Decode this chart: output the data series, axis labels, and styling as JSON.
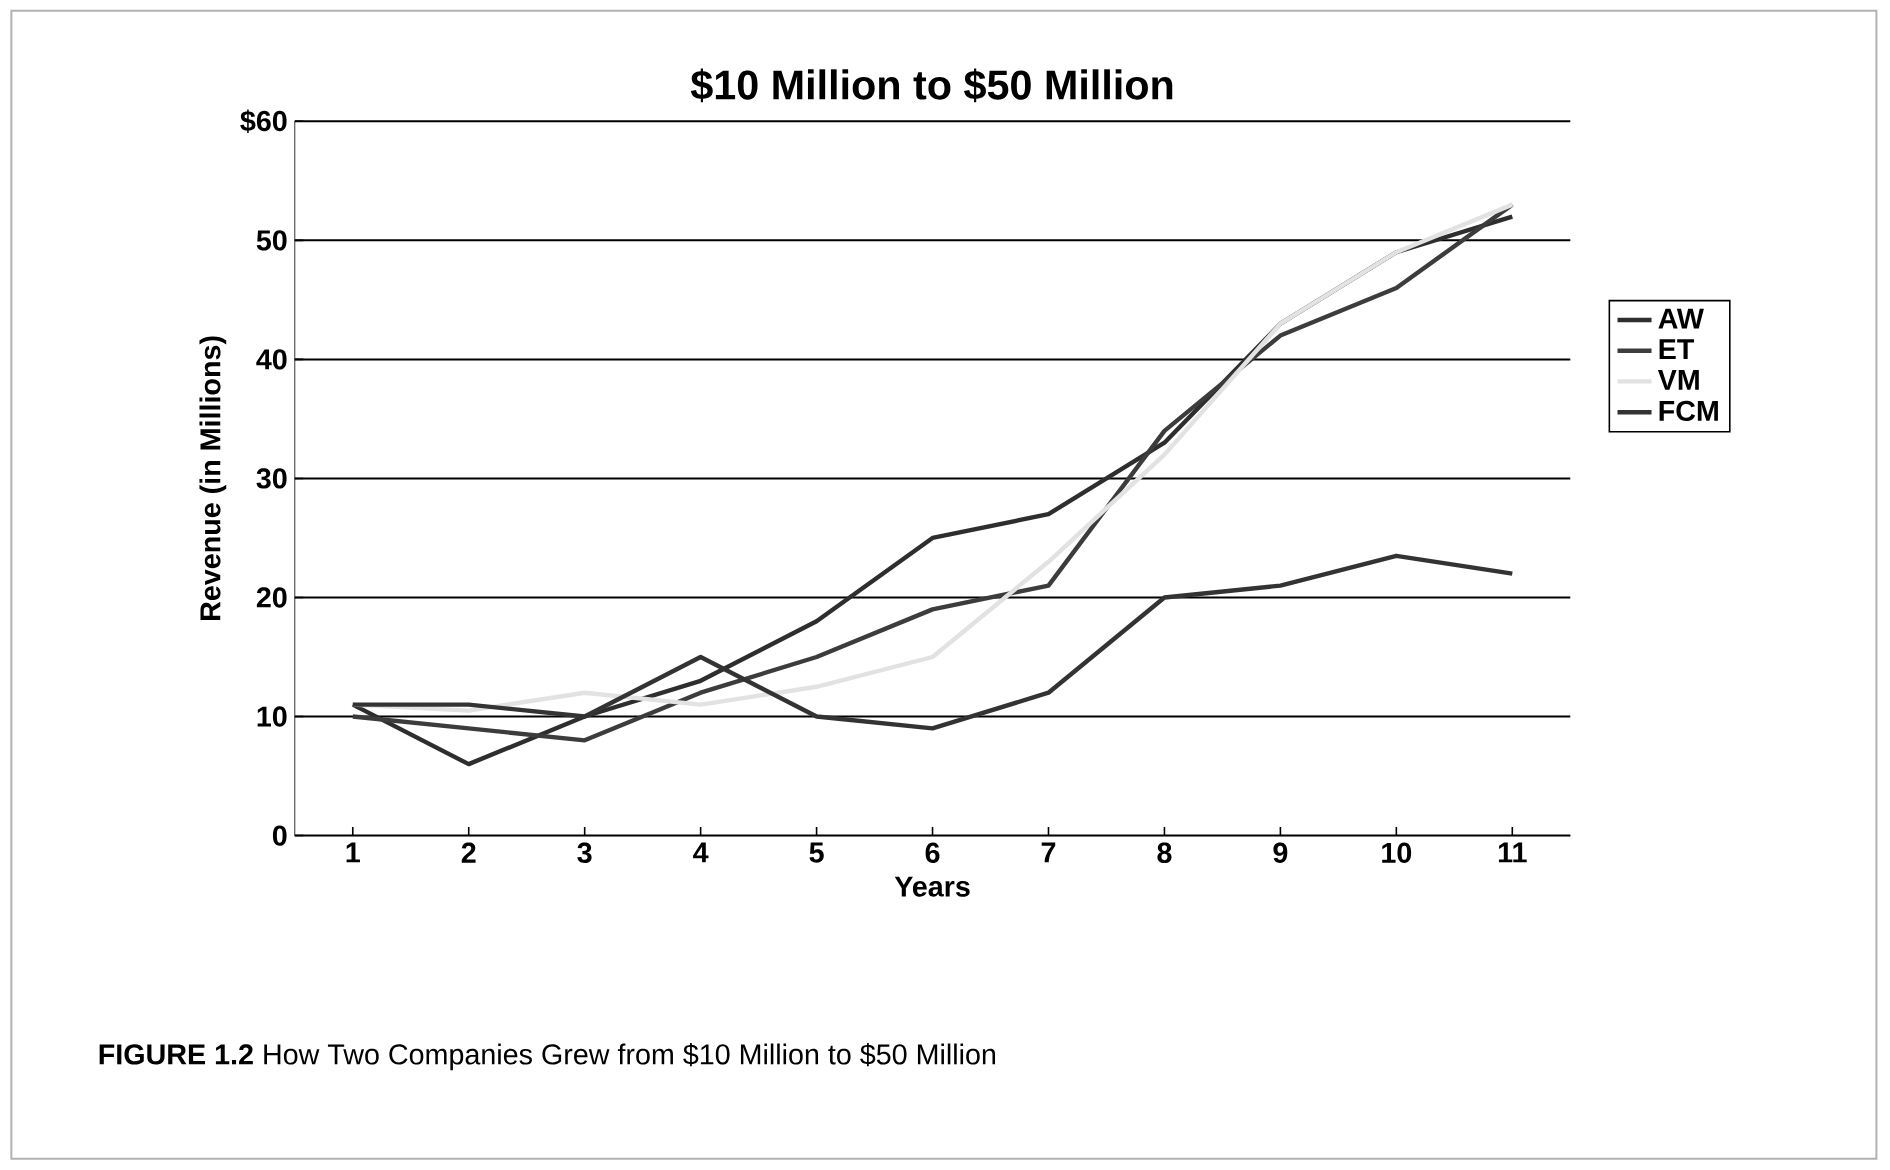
{
  "chart_data": {
    "type": "line",
    "title": "$10 Million to $50 Million",
    "xlabel": "Years",
    "ylabel": "Revenue (in Millions)",
    "categories": [
      "1",
      "2",
      "3",
      "4",
      "5",
      "6",
      "7",
      "8",
      "9",
      "10",
      "11"
    ],
    "series": [
      {
        "name": "AW",
        "color": "#2e2e2e",
        "values": [
          11,
          6,
          10,
          13,
          18,
          25,
          27,
          33,
          43,
          49,
          52
        ]
      },
      {
        "name": "ET",
        "color": "#3c3c3c",
        "values": [
          10,
          9,
          8,
          12,
          15,
          19,
          21,
          34,
          42,
          46,
          53
        ]
      },
      {
        "name": "VM",
        "color": "#e2e2e2",
        "values": [
          11,
          10.5,
          12,
          11,
          12.5,
          15,
          23,
          32,
          43,
          49,
          53
        ]
      },
      {
        "name": "FCM",
        "color": "#333333",
        "values": [
          11,
          11,
          10,
          15,
          10,
          9,
          12,
          20,
          21,
          23.5,
          22
        ]
      }
    ],
    "ylim": [
      0,
      60
    ],
    "yticks": [
      {
        "value": 0,
        "label": "0"
      },
      {
        "value": 10,
        "label": "10"
      },
      {
        "value": 20,
        "label": "20"
      },
      {
        "value": 30,
        "label": "30"
      },
      {
        "value": 40,
        "label": "40"
      },
      {
        "value": 50,
        "label": "50"
      },
      {
        "value": 60,
        "label": "$60"
      }
    ],
    "grid": "y",
    "legend": "right",
    "marker": "none",
    "line_style": "solid",
    "annotations": [
      "**FIGURE 1.2** How Two Companies Grew from $10 Million to $50 Million"
    ]
  }
}
